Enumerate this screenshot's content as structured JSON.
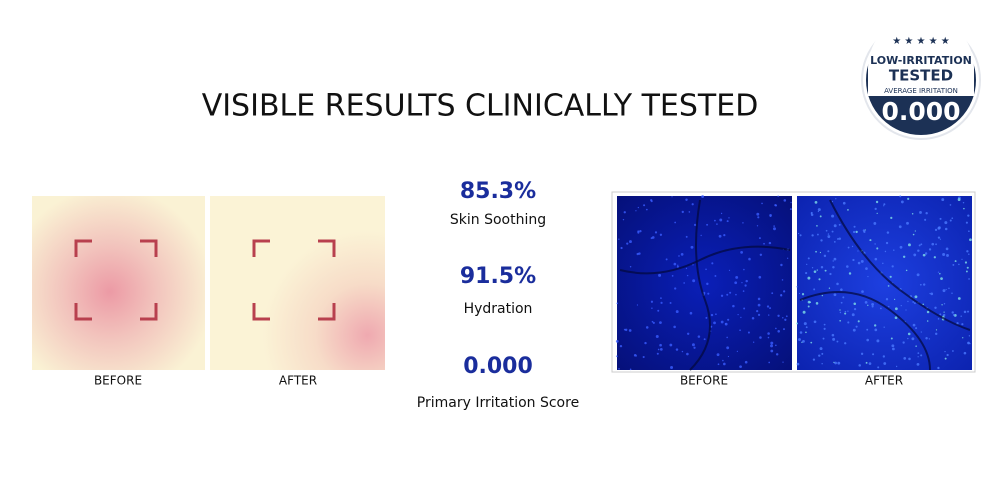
{
  "title": "VISIBLE RESULTS CLINICALLY TESTED",
  "badge": {
    "top": "LOW-IRRITATION",
    "main": "TESTED",
    "sub": "AVERAGE IRRITATION",
    "score": "0.000"
  },
  "left_images": {
    "before": "BEFORE",
    "after": "AFTER"
  },
  "stats": [
    {
      "value": "85.3%",
      "label": "Skin Soothing"
    },
    {
      "value": "91.5%",
      "label": "Hydration"
    },
    {
      "value": "0.000",
      "label": "Primary Irritation Score"
    }
  ],
  "right_images": {
    "before": "BEFORE",
    "after": "AFTER"
  }
}
